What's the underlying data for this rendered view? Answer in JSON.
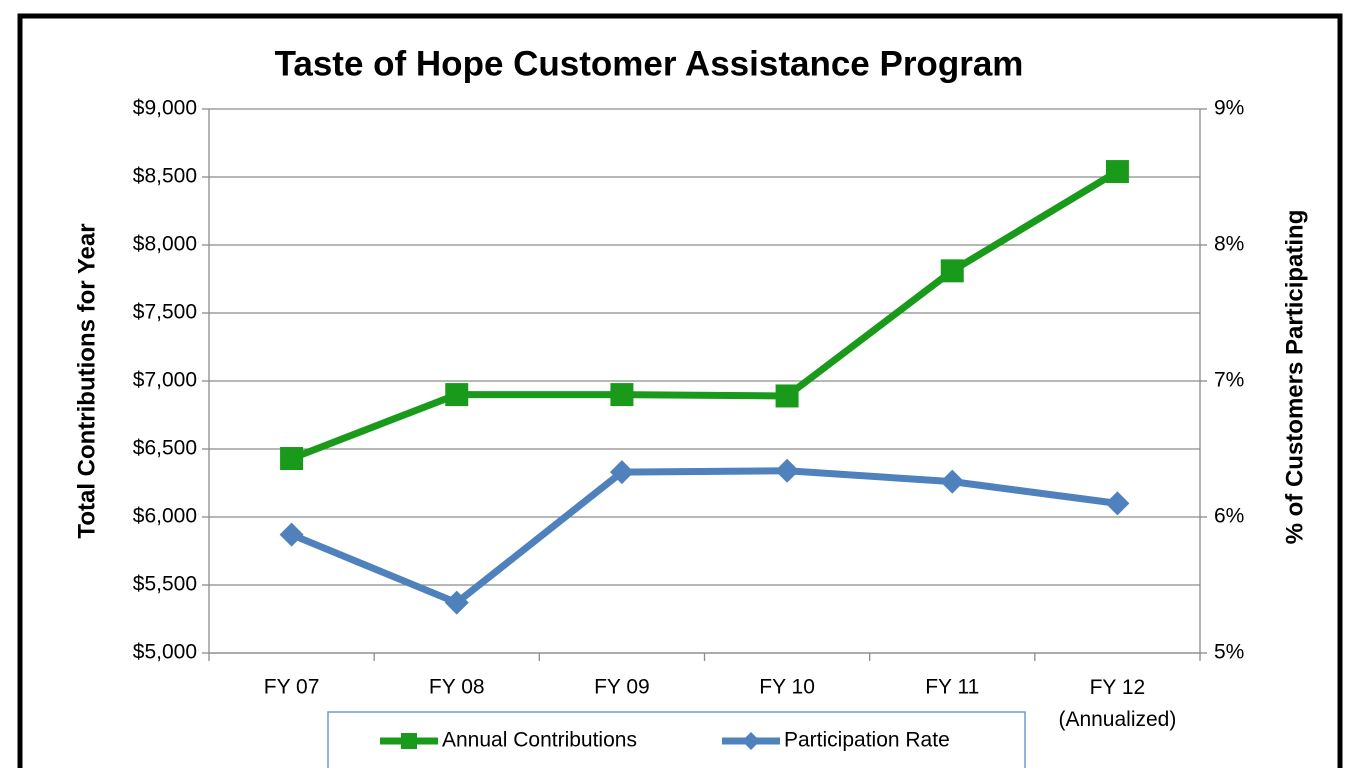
{
  "chart_data": {
    "type": "line",
    "title": "Taste of Hope Customer Assistance Program",
    "y_label": "Total Contributions for Year",
    "y2_label": "% of Customers Participating",
    "categories": [
      "FY 07",
      "FY 08",
      "FY 09",
      "FY 10",
      "FY 11",
      "FY 12\n(Annualized)"
    ],
    "series": [
      {
        "name": "Annual Contributions",
        "color": "#1a9a1a",
        "marker": "square",
        "values": [
          6430,
          6900,
          6900,
          6890,
          7810,
          8540
        ]
      },
      {
        "name": "Participation Rate",
        "color": "#4f81bd",
        "marker": "diamond",
        "axis": "y2",
        "values": [
          5.87,
          5.37,
          6.33,
          6.34,
          6.26,
          6.1
        ]
      }
    ],
    "ylim": [
      5000,
      9000
    ],
    "yticks": [
      {
        "value": 5000,
        "label": "$5,000"
      },
      {
        "value": 5500,
        "label": "$5,500"
      },
      {
        "value": 6000,
        "label": "$6,000"
      },
      {
        "value": 6500,
        "label": "$6,500"
      },
      {
        "value": 7000,
        "label": "$7,000"
      },
      {
        "value": 7500,
        "label": "$7,500"
      },
      {
        "value": 8000,
        "label": "$8,000"
      },
      {
        "value": 8500,
        "label": "$8,500"
      },
      {
        "value": 9000,
        "label": "$9,000"
      }
    ],
    "y2lim": [
      5,
      9
    ],
    "y2ticks": [
      {
        "value": 5,
        "label": "5%"
      },
      {
        "value": 6,
        "label": "6%"
      },
      {
        "value": 7,
        "label": "7%"
      },
      {
        "value": 8,
        "label": "8%"
      },
      {
        "value": 9,
        "label": "9%"
      }
    ],
    "grid": true,
    "legend": "bottom"
  }
}
